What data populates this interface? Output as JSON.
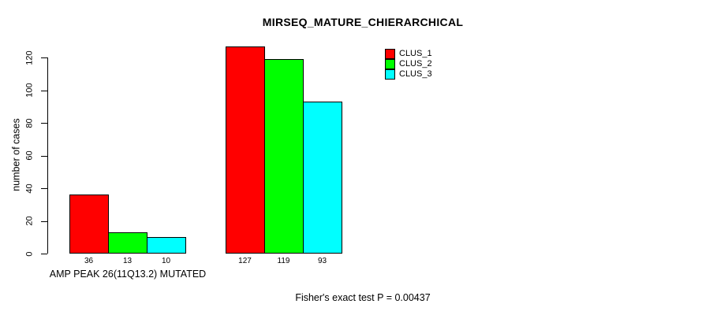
{
  "chart_data": {
    "type": "bar",
    "title": "MIRSEQ_MATURE_CHIERARCHICAL",
    "ylabel": "number of cases",
    "xlabel": "",
    "group_label": "AMP PEAK 26(11Q13.2) MUTATED",
    "categories": [
      "AMP PEAK 26(11Q13.2) MUTATED",
      ""
    ],
    "series": [
      {
        "name": "CLUS_1",
        "color": "#ff0000",
        "values": [
          36,
          127
        ]
      },
      {
        "name": "CLUS_2",
        "color": "#00ff00",
        "values": [
          13,
          119
        ]
      },
      {
        "name": "CLUS_3",
        "color": "#00ffff",
        "values": [
          10,
          93
        ]
      }
    ],
    "bar_value_labels": [
      [
        36,
        13,
        10
      ],
      [
        127,
        119,
        93
      ]
    ],
    "yticks": [
      0,
      20,
      40,
      60,
      80,
      100,
      120
    ],
    "ylim": [
      0,
      127
    ],
    "grid": false,
    "legend_position": "top-right",
    "annotation": "Fisher's exact test P = 0.00437",
    "bar_border_color": "#000000",
    "background_color": "#ffffff"
  }
}
